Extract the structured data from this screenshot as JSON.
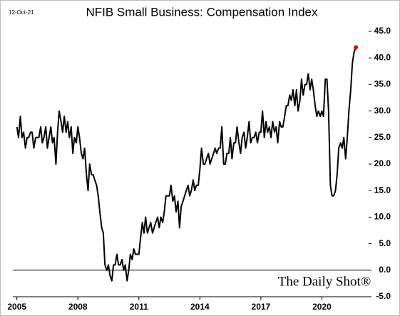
{
  "chart_data": {
    "type": "line",
    "title": "NFIB Small Business: Compensation Index",
    "date_label": "12-Oct-21",
    "watermark": "The Daily Shot®",
    "color": "#000000",
    "last_point_color": "#e00000",
    "y_axis_side": "right",
    "xlim": [
      2004.8,
      2022.3
    ],
    "xticks": [
      2005,
      2008,
      2011,
      2014,
      2017,
      2020
    ],
    "ylim": [
      -5,
      45
    ],
    "yticks": [
      {
        "value": -5,
        "label": "-5.0"
      },
      {
        "value": 0,
        "label": "0.0"
      },
      {
        "value": 5,
        "label": "5.0"
      },
      {
        "value": 10,
        "label": "10.0"
      },
      {
        "value": 15,
        "label": "15.0"
      },
      {
        "value": 20,
        "label": "20.0"
      },
      {
        "value": 25,
        "label": "25.0"
      },
      {
        "value": 30,
        "label": "30.0"
      },
      {
        "value": 35,
        "label": "35.0"
      },
      {
        "value": 40,
        "label": "40.0"
      },
      {
        "value": 45,
        "label": "45.0"
      }
    ],
    "x": [
      2005.0,
      2005.08,
      2005.17,
      2005.25,
      2005.33,
      2005.42,
      2005.5,
      2005.58,
      2005.67,
      2005.75,
      2005.83,
      2005.92,
      2006.0,
      2006.08,
      2006.17,
      2006.25,
      2006.33,
      2006.42,
      2006.5,
      2006.58,
      2006.67,
      2006.75,
      2006.83,
      2006.92,
      2007.0,
      2007.08,
      2007.17,
      2007.25,
      2007.33,
      2007.42,
      2007.5,
      2007.58,
      2007.67,
      2007.75,
      2007.83,
      2007.92,
      2008.0,
      2008.08,
      2008.17,
      2008.25,
      2008.33,
      2008.42,
      2008.5,
      2008.58,
      2008.67,
      2008.75,
      2008.83,
      2008.92,
      2009.0,
      2009.08,
      2009.17,
      2009.25,
      2009.33,
      2009.42,
      2009.5,
      2009.58,
      2009.67,
      2009.75,
      2009.83,
      2009.92,
      2010.0,
      2010.08,
      2010.17,
      2010.25,
      2010.33,
      2010.42,
      2010.5,
      2010.58,
      2010.67,
      2010.75,
      2010.83,
      2010.92,
      2011.0,
      2011.08,
      2011.17,
      2011.25,
      2011.33,
      2011.42,
      2011.5,
      2011.58,
      2011.67,
      2011.75,
      2011.83,
      2011.92,
      2012.0,
      2012.08,
      2012.17,
      2012.25,
      2012.33,
      2012.42,
      2012.5,
      2012.58,
      2012.67,
      2012.75,
      2012.83,
      2012.92,
      2013.0,
      2013.08,
      2013.17,
      2013.25,
      2013.33,
      2013.42,
      2013.5,
      2013.58,
      2013.67,
      2013.75,
      2013.83,
      2013.92,
      2014.0,
      2014.08,
      2014.17,
      2014.25,
      2014.33,
      2014.42,
      2014.5,
      2014.58,
      2014.67,
      2014.75,
      2014.83,
      2014.92,
      2015.0,
      2015.08,
      2015.17,
      2015.25,
      2015.33,
      2015.42,
      2015.5,
      2015.58,
      2015.67,
      2015.75,
      2015.83,
      2015.92,
      2016.0,
      2016.08,
      2016.17,
      2016.25,
      2016.33,
      2016.42,
      2016.5,
      2016.58,
      2016.67,
      2016.75,
      2016.83,
      2016.92,
      2017.0,
      2017.08,
      2017.17,
      2017.25,
      2017.33,
      2017.42,
      2017.5,
      2017.58,
      2017.67,
      2017.75,
      2017.83,
      2017.92,
      2018.0,
      2018.08,
      2018.17,
      2018.25,
      2018.33,
      2018.42,
      2018.5,
      2018.58,
      2018.67,
      2018.75,
      2018.83,
      2018.92,
      2019.0,
      2019.08,
      2019.17,
      2019.25,
      2019.33,
      2019.42,
      2019.5,
      2019.58,
      2019.67,
      2019.75,
      2019.83,
      2019.92,
      2020.0,
      2020.08,
      2020.17,
      2020.25,
      2020.33,
      2020.42,
      2020.5,
      2020.58,
      2020.67,
      2020.75,
      2020.83,
      2020.92,
      2021.0,
      2021.08,
      2021.17,
      2021.25,
      2021.33,
      2021.42,
      2021.5,
      2021.58,
      2021.67
    ],
    "values": [
      27,
      25,
      29,
      25,
      26,
      23,
      25,
      25,
      26,
      26,
      23,
      25,
      25,
      25,
      27,
      24,
      25,
      27,
      23,
      25,
      27,
      24,
      25,
      20,
      26,
      30,
      28,
      26,
      29,
      26,
      28,
      25,
      27,
      22,
      25,
      24,
      27,
      25,
      22,
      21,
      23,
      18,
      15,
      20,
      18,
      18,
      17,
      16,
      14,
      11,
      8,
      7,
      1,
      0,
      1,
      -1,
      -2,
      1,
      1,
      3,
      1,
      1,
      2,
      0,
      1,
      -2,
      0,
      3,
      2,
      4,
      3,
      3,
      3,
      6,
      9,
      7,
      10,
      7,
      8,
      9,
      7,
      8,
      9,
      10,
      8,
      10,
      9,
      11,
      14,
      14,
      14,
      16,
      13,
      14,
      11,
      13,
      8,
      12,
      13,
      14,
      15,
      16,
      14,
      15,
      17,
      15,
      16,
      16,
      19,
      23,
      20,
      20,
      21,
      22,
      20,
      21,
      22,
      23,
      22,
      23,
      23,
      27,
      20,
      20,
      22,
      22,
      25,
      21,
      24,
      24,
      27,
      24,
      22,
      25,
      26,
      23,
      25,
      28,
      24,
      25,
      25,
      26,
      24,
      26,
      26,
      30,
      25,
      28,
      26,
      27,
      25,
      28,
      26,
      27,
      24,
      28,
      27,
      27,
      29,
      31,
      31,
      33,
      32,
      34,
      31,
      34,
      30,
      32,
      36,
      33,
      35,
      35,
      37,
      34,
      36,
      34,
      31,
      29,
      30,
      29,
      30,
      29,
      36,
      36,
      30,
      16,
      14,
      14,
      15,
      18,
      23,
      24,
      23,
      25,
      21,
      25,
      30,
      34,
      39,
      41,
      42
    ]
  }
}
